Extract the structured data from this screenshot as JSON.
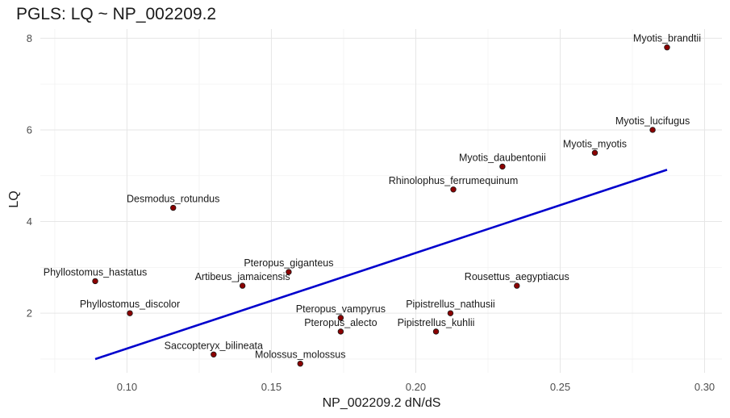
{
  "chart_data": {
    "type": "scatter",
    "title": "PGLS: LQ ~ NP_002209.2",
    "xlabel": "NP_002209.2 dN/dS",
    "ylabel": "LQ",
    "xlim": [
      0.07,
      0.306
    ],
    "ylim": [
      0.7,
      8.2
    ],
    "x_ticks": [
      0.1,
      0.15,
      0.2,
      0.25,
      0.3
    ],
    "x_tick_labels": [
      "0.10",
      "0.15",
      "0.20",
      "0.25",
      "0.30"
    ],
    "y_ticks": [
      2,
      4,
      6,
      8
    ],
    "y_tick_labels": [
      "2",
      "4",
      "6",
      "8"
    ],
    "grid": true,
    "point_color": "#8b0000",
    "line_color": "#0000cd",
    "points": [
      {
        "label": "Myotis_brandtii",
        "x": 0.287,
        "y": 7.8
      },
      {
        "label": "Myotis_lucifugus",
        "x": 0.282,
        "y": 6.0
      },
      {
        "label": "Myotis_myotis",
        "x": 0.262,
        "y": 5.5
      },
      {
        "label": "Myotis_daubentonii",
        "x": 0.23,
        "y": 5.2
      },
      {
        "label": "Rhinolophus_ferrumequinum",
        "x": 0.213,
        "y": 4.7
      },
      {
        "label": "Desmodus_rotundus",
        "x": 0.116,
        "y": 4.3
      },
      {
        "label": "Pteropus_giganteus",
        "x": 0.156,
        "y": 2.9
      },
      {
        "label": "Phyllostomus_hastatus",
        "x": 0.089,
        "y": 2.7
      },
      {
        "label": "Artibeus_jamaicensis",
        "x": 0.14,
        "y": 2.6
      },
      {
        "label": "Rousettus_aegyptiacus",
        "x": 0.235,
        "y": 2.6
      },
      {
        "label": "Phyllostomus_discolor",
        "x": 0.101,
        "y": 2.0
      },
      {
        "label": "Pipistrellus_nathusii",
        "x": 0.212,
        "y": 2.0
      },
      {
        "label": "Pteropus_vampyrus",
        "x": 0.174,
        "y": 1.9
      },
      {
        "label": "Pteropus_alecto",
        "x": 0.174,
        "y": 1.6
      },
      {
        "label": "Pipistrellus_kuhlii",
        "x": 0.207,
        "y": 1.6
      },
      {
        "label": "Saccopteryx_bilineata",
        "x": 0.13,
        "y": 1.1
      },
      {
        "label": "Molossus_molossus",
        "x": 0.16,
        "y": 0.9
      }
    ],
    "fit_line": {
      "x": [
        0.089,
        0.287
      ],
      "y": [
        1.0,
        5.13
      ]
    }
  }
}
